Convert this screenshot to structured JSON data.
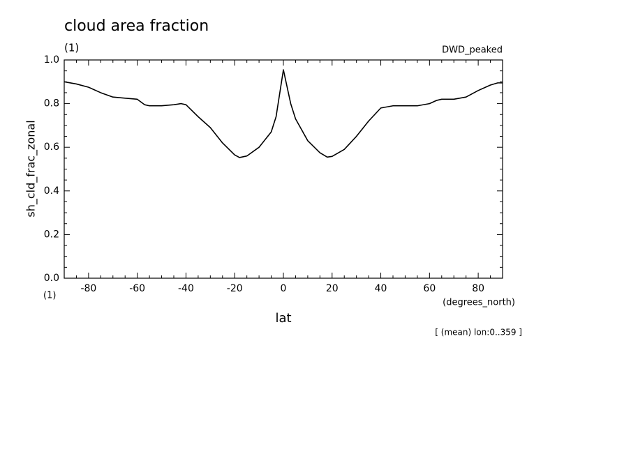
{
  "chart_data": {
    "type": "line",
    "title": "cloud area fraction",
    "subtitle": "(1)",
    "dataset_label": "DWD_peaked",
    "ylabel": "sh_cld_frac_zonal",
    "yunits": "(1)",
    "xlabel": "lat",
    "xunits": "(degrees_north)",
    "annotation": "[ (mean) lon:0..359 ]",
    "xlim": [
      -90,
      90
    ],
    "ylim": [
      0,
      1
    ],
    "xticks": [
      -80,
      -60,
      -40,
      -20,
      0,
      20,
      40,
      60,
      80
    ],
    "yticks": [
      {
        "value": 0,
        "label": "0.0"
      },
      0.2,
      0.4,
      0.6,
      0.8,
      {
        "value": 1,
        "label": "1.0"
      }
    ],
    "x": [
      -90,
      -85,
      -80,
      -75,
      -70,
      -65,
      -60,
      -57,
      -55,
      -50,
      -45,
      -42,
      -40,
      -35,
      -30,
      -25,
      -20,
      -18,
      -15,
      -10,
      -5,
      -3,
      0,
      3,
      5,
      7,
      10,
      15,
      18,
      20,
      25,
      30,
      35,
      40,
      45,
      50,
      55,
      60,
      63,
      65,
      70,
      75,
      80,
      85,
      88,
      90
    ],
    "series": [
      {
        "color": "#000000",
        "values": [
          0.9,
          0.89,
          0.875,
          0.85,
          0.83,
          0.825,
          0.82,
          0.795,
          0.79,
          0.79,
          0.795,
          0.8,
          0.795,
          0.74,
          0.69,
          0.62,
          0.565,
          0.553,
          0.56,
          0.6,
          0.67,
          0.74,
          0.955,
          0.8,
          0.73,
          0.69,
          0.63,
          0.575,
          0.555,
          0.558,
          0.59,
          0.65,
          0.72,
          0.78,
          0.79,
          0.79,
          0.79,
          0.8,
          0.815,
          0.82,
          0.82,
          0.83,
          0.86,
          0.885,
          0.895,
          0.895
        ]
      }
    ]
  }
}
